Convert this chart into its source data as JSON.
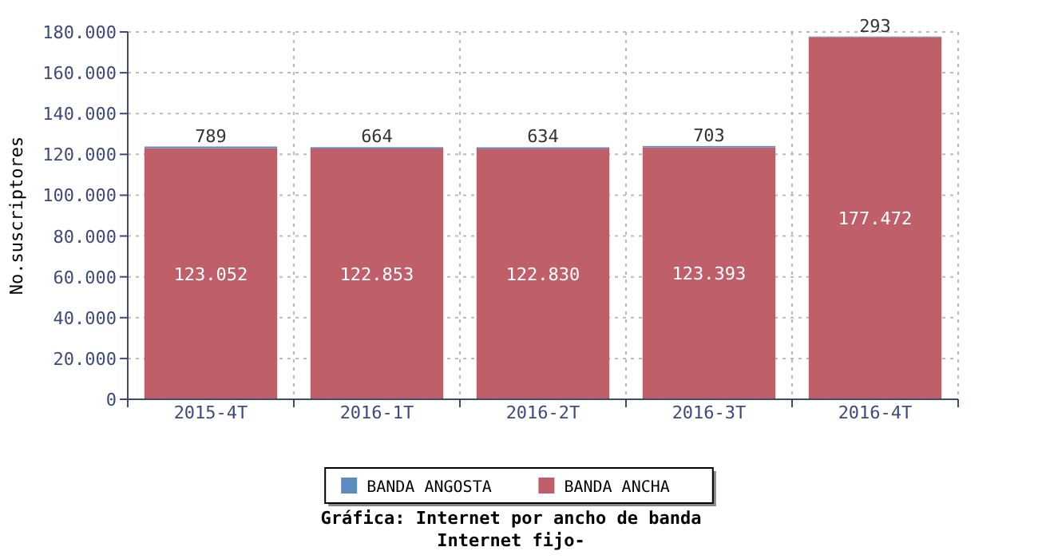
{
  "chart_data": {
    "type": "bar",
    "stacked": true,
    "title": "Gráfica: Internet por ancho de banda",
    "subtitle": "Internet fijo-",
    "ylabel": "No.suscriptores",
    "categories": [
      "2015-4T",
      "2016-1T",
      "2016-2T",
      "2016-3T",
      "2016-4T"
    ],
    "series": [
      {
        "name": "BANDA ANCHA",
        "color": "#be5f69",
        "values": [
          123052,
          122853,
          122830,
          123393,
          177472
        ],
        "value_labels": [
          "123.052",
          "122.853",
          "122.830",
          "123.393",
          "177.472"
        ]
      },
      {
        "name": "BANDA ANGOSTA",
        "color": "#5b8bbf",
        "values": [
          789,
          664,
          634,
          703,
          293
        ],
        "value_labels": [
          "789",
          "664",
          "634",
          "703",
          "293"
        ]
      }
    ],
    "ylim": [
      0,
      180000
    ],
    "yticks": [
      0,
      {
        "value": 20000,
        "label": "20.000"
      },
      {
        "value": 40000,
        "label": "40.000"
      },
      {
        "value": 60000,
        "label": "60.000"
      },
      {
        "value": 80000,
        "label": "80.000"
      },
      {
        "value": 100000,
        "label": "100.000"
      },
      {
        "value": 120000,
        "label": "120.000"
      },
      {
        "value": 140000,
        "label": "140.000"
      },
      {
        "value": 160000,
        "label": "160.000"
      },
      {
        "value": 180000,
        "label": "180.000"
      }
    ],
    "grid": true,
    "legend": "bottom"
  }
}
